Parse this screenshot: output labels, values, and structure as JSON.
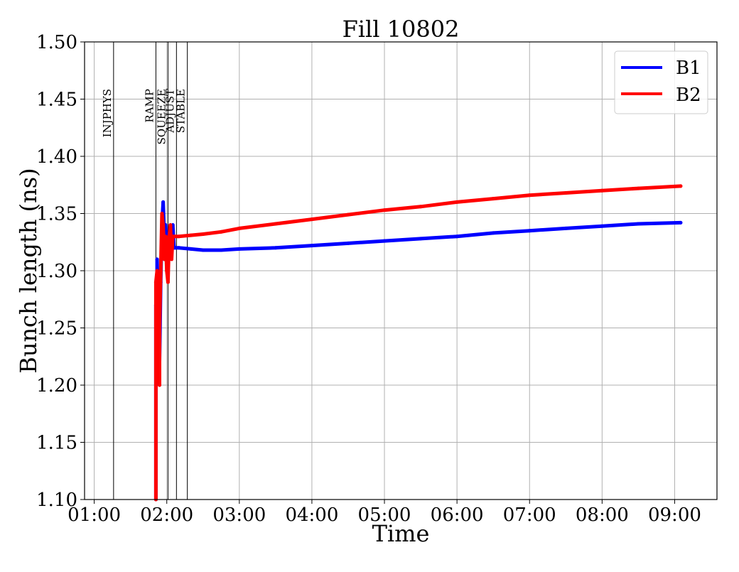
{
  "chart_data": {
    "type": "line",
    "title": "Fill 10802",
    "xlabel": "Time",
    "ylabel": "Bunch length (ns)",
    "xlim": [
      "00:52",
      "09:35"
    ],
    "ylim": [
      1.1,
      1.5
    ],
    "x_ticks": [
      "01:00",
      "02:00",
      "03:00",
      "04:00",
      "05:00",
      "06:00",
      "07:00",
      "08:00",
      "09:00"
    ],
    "y_ticks": [
      "1.10",
      "1.15",
      "1.20",
      "1.25",
      "1.30",
      "1.35",
      "1.40",
      "1.45",
      "1.50"
    ],
    "grid": true,
    "legend_position": "top-right",
    "phases": [
      {
        "label": "INJPHYS",
        "time": "01:16"
      },
      {
        "label": "RAMP",
        "time": "01:51"
      },
      {
        "label": "SQUEEZE",
        "time": "02:01"
      },
      {
        "label": "ADJUST",
        "time": "02:08"
      },
      {
        "label": "STABLE",
        "time": "02:17"
      }
    ],
    "series": [
      {
        "name": "B1",
        "color": "#0000ff",
        "points": [
          [
            "01:51",
            1.1
          ],
          [
            "01:51",
            1.27
          ],
          [
            "01:52",
            1.26
          ],
          [
            "01:52",
            1.31
          ],
          [
            "01:53",
            1.25
          ],
          [
            "01:53",
            1.3
          ],
          [
            "01:54",
            1.22
          ],
          [
            "01:55",
            1.29
          ],
          [
            "01:56",
            1.34
          ],
          [
            "01:57",
            1.36
          ],
          [
            "01:58",
            1.33
          ],
          [
            "01:59",
            1.34
          ],
          [
            "02:00",
            1.32
          ],
          [
            "02:01",
            1.33
          ],
          [
            "02:02",
            1.31
          ],
          [
            "02:03",
            1.33
          ],
          [
            "02:05",
            1.34
          ],
          [
            "02:06",
            1.32
          ],
          [
            "02:07",
            1.32
          ],
          [
            "02:10",
            1.32
          ],
          [
            "02:20",
            1.319
          ],
          [
            "02:30",
            1.318
          ],
          [
            "02:45",
            1.318
          ],
          [
            "03:00",
            1.319
          ],
          [
            "03:30",
            1.32
          ],
          [
            "04:00",
            1.322
          ],
          [
            "04:30",
            1.324
          ],
          [
            "05:00",
            1.326
          ],
          [
            "05:30",
            1.328
          ],
          [
            "06:00",
            1.33
          ],
          [
            "06:30",
            1.333
          ],
          [
            "07:00",
            1.335
          ],
          [
            "07:30",
            1.337
          ],
          [
            "08:00",
            1.339
          ],
          [
            "08:30",
            1.341
          ],
          [
            "09:05",
            1.342
          ]
        ]
      },
      {
        "name": "B2",
        "color": "#ff0000",
        "points": [
          [
            "01:51",
            1.1
          ],
          [
            "01:51",
            1.29
          ],
          [
            "01:52",
            1.3
          ],
          [
            "01:52",
            1.28
          ],
          [
            "01:53",
            1.26
          ],
          [
            "01:54",
            1.2
          ],
          [
            "01:54",
            1.25
          ],
          [
            "01:55",
            1.3
          ],
          [
            "01:56",
            1.35
          ],
          [
            "01:57",
            1.34
          ],
          [
            "01:58",
            1.31
          ],
          [
            "01:59",
            1.33
          ],
          [
            "02:00",
            1.3
          ],
          [
            "02:01",
            1.29
          ],
          [
            "02:02",
            1.33
          ],
          [
            "02:03",
            1.34
          ],
          [
            "02:04",
            1.31
          ],
          [
            "02:05",
            1.33
          ],
          [
            "02:06",
            1.33
          ],
          [
            "02:10",
            1.33
          ],
          [
            "02:20",
            1.331
          ],
          [
            "02:30",
            1.332
          ],
          [
            "02:45",
            1.334
          ],
          [
            "03:00",
            1.337
          ],
          [
            "03:30",
            1.341
          ],
          [
            "04:00",
            1.345
          ],
          [
            "04:30",
            1.349
          ],
          [
            "05:00",
            1.353
          ],
          [
            "05:30",
            1.356
          ],
          [
            "06:00",
            1.36
          ],
          [
            "06:30",
            1.363
          ],
          [
            "07:00",
            1.366
          ],
          [
            "07:30",
            1.368
          ],
          [
            "08:00",
            1.37
          ],
          [
            "08:30",
            1.372
          ],
          [
            "09:05",
            1.374
          ]
        ]
      }
    ]
  }
}
